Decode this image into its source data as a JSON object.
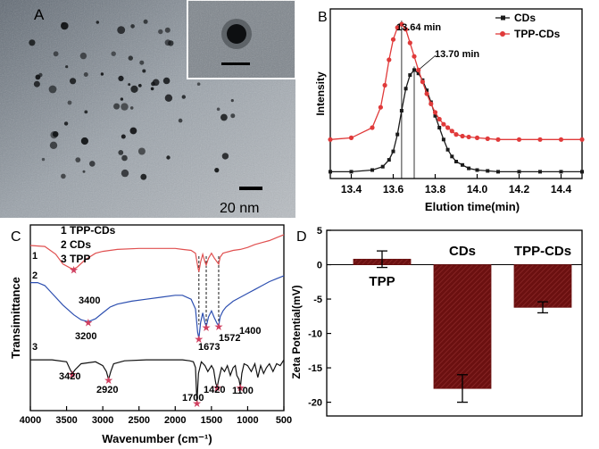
{
  "panels": {
    "A": {
      "letter": "A",
      "scale_bar": "20 nm"
    },
    "B": {
      "letter": "B",
      "annotations": [
        "13.64 min",
        "13.70 min"
      ]
    },
    "C": {
      "letter": "C",
      "annotations": [
        "3400",
        "3200",
        "1673",
        "1572",
        "1400",
        "3420",
        "2920",
        "1700",
        "1420",
        "1100"
      ],
      "trace_numbers": [
        "1",
        "2",
        "3"
      ]
    },
    "D": {
      "letter": "D",
      "annotations": [
        "TPP",
        "CDs",
        "TPP-CDs"
      ]
    }
  },
  "colors": {
    "cds": "#1a1a1a",
    "tpp_cds": "#e03a3a",
    "trace1": "#e05050",
    "trace2": "#2d4fb0",
    "trace3": "#111111",
    "bar": "#6b1010",
    "star": "#d04060"
  },
  "chart_data": [
    {
      "panel": "B",
      "type": "line",
      "title": "",
      "xlabel": "Elution time(min)",
      "ylabel": "Intensity",
      "xlim": [
        13.3,
        14.5
      ],
      "x_ticks": [
        "13.4",
        "13.6",
        "13.8",
        "14.0",
        "14.2",
        "14.4"
      ],
      "legend": "top-right",
      "series": [
        {
          "name": "CDs",
          "color": "#1a1a1a",
          "marker": "square",
          "x": [
            13.3,
            13.4,
            13.5,
            13.55,
            13.58,
            13.6,
            13.62,
            13.64,
            13.66,
            13.68,
            13.7,
            13.72,
            13.74,
            13.76,
            13.78,
            13.8,
            13.82,
            13.84,
            13.86,
            13.88,
            13.9,
            13.93,
            13.96,
            14.0,
            14.05,
            14.1,
            14.2,
            14.3,
            14.4,
            14.5
          ],
          "y": [
            0.04,
            0.04,
            0.05,
            0.07,
            0.11,
            0.16,
            0.26,
            0.4,
            0.53,
            0.61,
            0.64,
            0.62,
            0.58,
            0.52,
            0.45,
            0.37,
            0.3,
            0.23,
            0.17,
            0.13,
            0.1,
            0.08,
            0.06,
            0.05,
            0.045,
            0.04,
            0.04,
            0.04,
            0.04,
            0.04
          ]
        },
        {
          "name": "TPP-CDs",
          "color": "#e03a3a",
          "marker": "circle",
          "x": [
            13.3,
            13.4,
            13.5,
            13.54,
            13.56,
            13.58,
            13.6,
            13.62,
            13.64,
            13.66,
            13.68,
            13.7,
            13.72,
            13.74,
            13.76,
            13.78,
            13.8,
            13.82,
            13.84,
            13.86,
            13.88,
            13.9,
            13.93,
            13.96,
            14.0,
            14.05,
            14.1,
            14.2,
            14.3,
            14.4,
            14.5
          ],
          "y": [
            0.23,
            0.24,
            0.3,
            0.42,
            0.55,
            0.7,
            0.82,
            0.89,
            0.91,
            0.88,
            0.8,
            0.72,
            0.64,
            0.57,
            0.5,
            0.44,
            0.39,
            0.35,
            0.32,
            0.3,
            0.28,
            0.26,
            0.25,
            0.245,
            0.24,
            0.235,
            0.23,
            0.23,
            0.23,
            0.23,
            0.23
          ]
        }
      ],
      "ylim": [
        0,
        1
      ]
    },
    {
      "panel": "C",
      "type": "line",
      "title": "",
      "xlabel": "Wavenumber (cm⁻¹)",
      "ylabel": "Transimittance",
      "xlim": [
        4000,
        500
      ],
      "x_ticks": [
        "4000",
        "3500",
        "3000",
        "2500",
        "2000",
        "1500",
        "1000",
        "500"
      ],
      "legend": "top-left",
      "legend_entries": [
        "1 TPP-CDs",
        "2  CDs",
        "3  TPP"
      ],
      "series": [
        {
          "name": "1 TPP-CDs",
          "color": "#e05050",
          "x": [
            4000,
            3800,
            3650,
            3550,
            3450,
            3400,
            3350,
            3250,
            3100,
            3000,
            2900,
            2800,
            2500,
            2200,
            2000,
            1900,
            1780,
            1720,
            1690,
            1673,
            1650,
            1620,
            1590,
            1572,
            1540,
            1500,
            1460,
            1420,
            1400,
            1380,
            1340,
            1300,
            1200,
            1100,
            1000,
            900,
            800,
            700,
            600,
            500
          ],
          "y": [
            7.45,
            7.4,
            7.0,
            6.5,
            6.3,
            6.25,
            6.35,
            6.7,
            7.05,
            7.15,
            7.2,
            7.25,
            7.3,
            7.3,
            7.3,
            7.25,
            7.2,
            7.05,
            6.4,
            6.1,
            6.6,
            7.0,
            6.6,
            6.45,
            6.8,
            7.05,
            6.8,
            6.6,
            6.5,
            6.85,
            7.05,
            7.1,
            7.2,
            7.25,
            7.35,
            7.5,
            7.6,
            7.7,
            7.85,
            8.0
          ]
        },
        {
          "name": "2 CDs",
          "color": "#2d4fb0",
          "x": [
            4000,
            3900,
            3800,
            3700,
            3550,
            3400,
            3300,
            3200,
            3100,
            3000,
            2900,
            2800,
            2600,
            2400,
            2200,
            2000,
            1900,
            1780,
            1720,
            1690,
            1673,
            1650,
            1620,
            1590,
            1572,
            1540,
            1500,
            1460,
            1420,
            1400,
            1380,
            1340,
            1300,
            1200,
            1100,
            1000,
            900,
            800,
            700,
            600,
            500
          ],
          "y": [
            5.55,
            5.55,
            5.4,
            5.0,
            4.4,
            3.9,
            3.65,
            3.55,
            3.7,
            4.0,
            4.3,
            4.45,
            4.6,
            4.7,
            4.8,
            4.9,
            4.9,
            4.7,
            4.2,
            3.0,
            2.7,
            3.5,
            4.0,
            3.5,
            3.3,
            3.8,
            4.1,
            3.75,
            3.45,
            3.35,
            3.8,
            4.1,
            4.3,
            4.6,
            4.8,
            5.0,
            5.2,
            5.4,
            5.6,
            5.75,
            5.9
          ]
        },
        {
          "name": "3 TPP",
          "color": "#111111",
          "x": [
            4000,
            3700,
            3500,
            3450,
            3420,
            3380,
            3300,
            3100,
            3000,
            2950,
            2920,
            2890,
            2850,
            2700,
            2400,
            2100,
            1900,
            1800,
            1750,
            1720,
            1700,
            1680,
            1640,
            1590,
            1550,
            1500,
            1470,
            1440,
            1420,
            1400,
            1360,
            1320,
            1280,
            1240,
            1200,
            1170,
            1150,
            1120,
            1100,
            1080,
            1050,
            1000,
            950,
            900,
            860,
            820,
            780,
            740,
            700,
            650,
            600,
            550,
            500
          ],
          "y": [
            1.6,
            1.6,
            1.5,
            1.1,
            0.9,
            1.1,
            1.4,
            1.5,
            1.3,
            1.0,
            0.6,
            1.0,
            1.4,
            1.55,
            1.6,
            1.6,
            1.6,
            1.55,
            1.5,
            1.2,
            -0.6,
            0.9,
            1.5,
            1.3,
            1.0,
            1.3,
            1.1,
            0.4,
            0.2,
            0.6,
            1.2,
            1.0,
            1.3,
            0.8,
            1.2,
            1.3,
            0.8,
            0.6,
            0.2,
            0.9,
            1.4,
            1.3,
            1.0,
            1.4,
            0.7,
            1.3,
            0.9,
            1.2,
            1.4,
            1.0,
            1.4,
            1.3,
            1.6
          ]
        }
      ],
      "ylim": [
        -1,
        8.5
      ]
    },
    {
      "panel": "D",
      "type": "bar",
      "title": "",
      "xlabel": "",
      "ylabel": "Zeta Potential(mV)",
      "ylim": [
        -22,
        5
      ],
      "y_ticks": [
        "5",
        "0",
        "-5",
        "-10",
        "-15",
        "-20"
      ],
      "categories": [
        "TPP",
        "CDs",
        "TPP-CDs"
      ],
      "values": [
        0.8,
        -18.0,
        -6.2
      ],
      "errors": [
        1.2,
        2.0,
        0.8
      ]
    }
  ]
}
